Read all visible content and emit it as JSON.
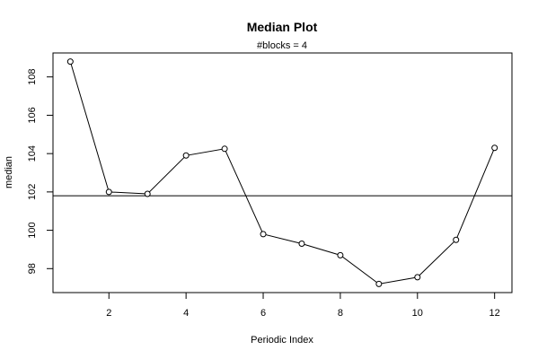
{
  "chart_data": {
    "type": "line",
    "title": "Median Plot",
    "subtitle": "#blocks =  4",
    "xlabel": "Periodic Index",
    "ylabel": "median",
    "x": [
      1,
      2,
      3,
      4,
      5,
      6,
      7,
      8,
      9,
      10,
      11,
      12
    ],
    "series": [
      {
        "values": [
          108.8,
          102.0,
          101.9,
          103.9,
          104.25,
          99.8,
          99.3,
          98.7,
          97.2,
          97.55,
          99.5,
          104.3
        ]
      }
    ],
    "reference_line": 101.8,
    "xlim": [
      0.55,
      12.45
    ],
    "ylim": [
      96.75,
      109.25
    ],
    "x_ticks": [
      2,
      4,
      6,
      8,
      10,
      12
    ],
    "y_ticks": [
      98,
      100,
      102,
      104,
      106,
      108
    ],
    "markers": "open-circle",
    "grid": false,
    "legend": "none"
  }
}
